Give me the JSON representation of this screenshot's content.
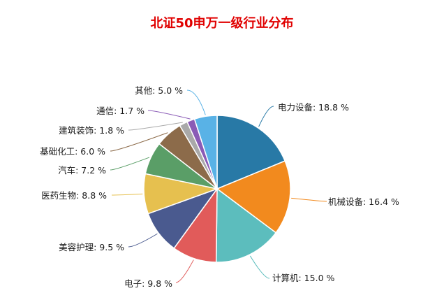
{
  "chart_data": {
    "type": "pie",
    "title": "北证50申万一级行业分布",
    "slices": [
      {
        "name": "电力设备",
        "value": 18.8,
        "label": "电力设备: 18.8 %",
        "color": "#2879a6"
      },
      {
        "name": "机械设备",
        "value": 16.4,
        "label": "机械设备: 16.4 %",
        "color": "#f28a1e"
      },
      {
        "name": "计算机",
        "value": 15.0,
        "label": "计算机: 15.0 %",
        "color": "#5cbdbd"
      },
      {
        "name": "电子",
        "value": 9.8,
        "label": "电子: 9.8 %",
        "color": "#e15b5a"
      },
      {
        "name": "美容护理",
        "value": 9.5,
        "label": "美容护理: 9.5 %",
        "color": "#4a5a8f"
      },
      {
        "name": "医药生物",
        "value": 8.8,
        "label": "医药生物: 8.8 %",
        "color": "#e6c04f"
      },
      {
        "name": "汽车",
        "value": 7.2,
        "label": "汽车: 7.2 %",
        "color": "#5a9e67"
      },
      {
        "name": "基础化工",
        "value": 6.0,
        "label": "基础化工: 6.0 %",
        "color": "#8c6b4a"
      },
      {
        "name": "建筑装饰",
        "value": 1.8,
        "label": "建筑装饰: 1.8 %",
        "color": "#a9a9a9"
      },
      {
        "name": "通信",
        "value": 1.7,
        "label": "通信: 1.7 %",
        "color": "#8a5bb6"
      },
      {
        "name": "其他",
        "value": 5.0,
        "label": "其他: 5.0 %",
        "color": "#59b2e6"
      }
    ]
  }
}
